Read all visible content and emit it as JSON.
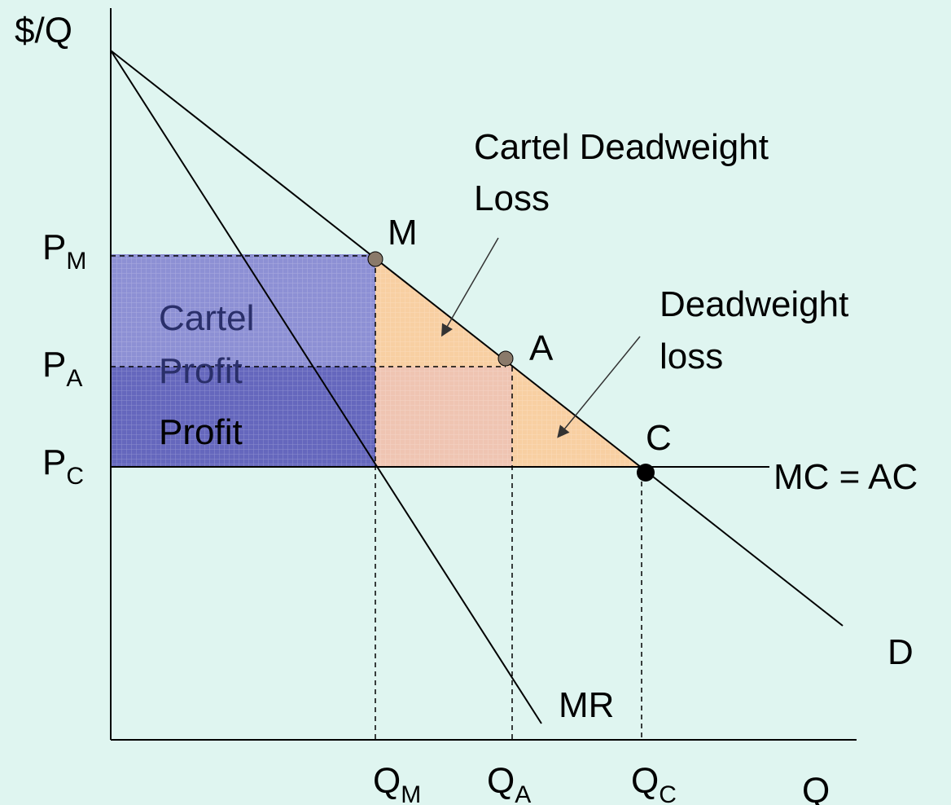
{
  "axes": {
    "y_label": "$/Q",
    "x_label": "Q"
  },
  "price_labels": [
    {
      "main": "P",
      "sub": "M"
    },
    {
      "main": "P",
      "sub": "A"
    },
    {
      "main": "P",
      "sub": "C"
    }
  ],
  "quantity_labels": [
    {
      "main": "Q",
      "sub": "M"
    },
    {
      "main": "Q",
      "sub": "A"
    },
    {
      "main": "Q",
      "sub": "C"
    }
  ],
  "points": [
    "M",
    "A",
    "C"
  ],
  "curves": {
    "mc": "MC = AC",
    "demand": "D",
    "mr": "MR"
  },
  "annotations": {
    "cartel_dwl": [
      "Cartel Deadweight",
      "Loss"
    ],
    "dwl": [
      "Deadweight",
      "loss"
    ],
    "cartel_profit": [
      "Cartel",
      "Profit"
    ],
    "profit": "Profit"
  }
}
